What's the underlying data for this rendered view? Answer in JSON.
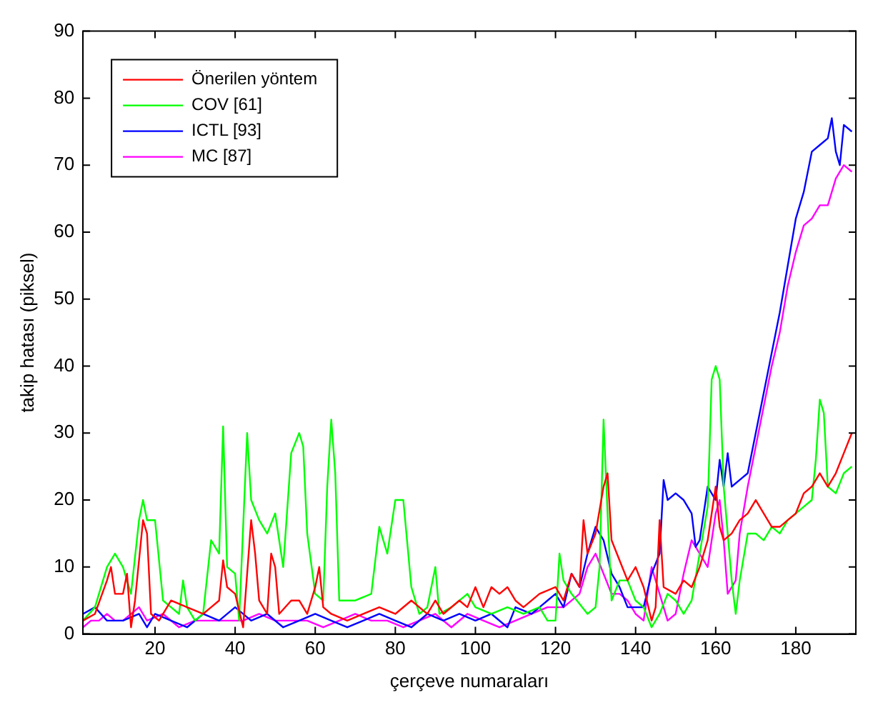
{
  "chart_data": {
    "type": "line",
    "xlabel": "çerçeve numaraları",
    "ylabel": "takip hatası (piksel)",
    "xlim": [
      2,
      195
    ],
    "xticks": [
      20,
      40,
      60,
      80,
      100,
      120,
      140,
      160,
      180
    ],
    "ylim": [
      0,
      90
    ],
    "yticks": [
      0,
      10,
      20,
      30,
      40,
      50,
      60,
      70,
      80,
      90
    ],
    "grid": false,
    "legend": "top left",
    "marker": "none",
    "line_style": "solid",
    "series": [
      {
        "name": "Önerilen yöntem",
        "color": "#ff0000",
        "x": [
          2,
          5,
          8,
          9,
          10,
          12,
          13,
          14,
          15,
          17,
          18,
          19,
          21,
          24,
          28,
          32,
          34,
          36,
          37,
          38,
          40,
          42,
          44,
          45,
          46,
          48,
          49,
          50,
          51,
          54,
          56,
          58,
          60,
          61,
          62,
          64,
          68,
          72,
          76,
          80,
          84,
          86,
          88,
          90,
          92,
          96,
          98,
          100,
          102,
          104,
          106,
          108,
          110,
          112,
          116,
          120,
          122,
          124,
          126,
          127,
          128,
          130,
          132,
          133,
          134,
          136,
          138,
          140,
          142,
          144,
          145,
          146,
          147,
          150,
          152,
          154,
          156,
          158,
          160,
          161,
          162,
          164,
          166,
          168,
          170,
          172,
          174,
          176,
          178,
          180,
          182,
          184,
          186,
          188,
          190,
          192,
          194
        ],
        "values": [
          2,
          3,
          8,
          10,
          6,
          6,
          9,
          1,
          5,
          17,
          15,
          3,
          2,
          5,
          4,
          3,
          4,
          5,
          11,
          7,
          6,
          1,
          17,
          12,
          5,
          3,
          12,
          10,
          3,
          5,
          5,
          3,
          7,
          10,
          4,
          3,
          2,
          3,
          4,
          3,
          5,
          4,
          3,
          5,
          3,
          5,
          4,
          7,
          4,
          7,
          6,
          7,
          5,
          4,
          6,
          7,
          5,
          9,
          7,
          17,
          12,
          15,
          22,
          24,
          14,
          11,
          8,
          10,
          7,
          2,
          4,
          17,
          7,
          6,
          8,
          7,
          10,
          14,
          22,
          16,
          14,
          15,
          17,
          18,
          20,
          18,
          16,
          16,
          17,
          18,
          21,
          22,
          24,
          22,
          24,
          27,
          30
        ]
      },
      {
        "name": "COV [61]",
        "color": "#00ff00",
        "x": [
          2,
          5,
          8,
          10,
          12,
          14,
          16,
          17,
          18,
          20,
          22,
          24,
          26,
          27,
          28,
          30,
          32,
          34,
          36,
          37,
          38,
          40,
          41,
          43,
          44,
          46,
          48,
          50,
          52,
          54,
          56,
          57,
          58,
          60,
          62,
          63,
          64,
          65,
          66,
          70,
          74,
          76,
          78,
          80,
          82,
          84,
          86,
          88,
          90,
          91,
          94,
          98,
          100,
          104,
          108,
          112,
          116,
          118,
          120,
          121,
          122,
          124,
          128,
          130,
          131,
          132,
          133,
          134,
          136,
          138,
          140,
          142,
          144,
          146,
          148,
          150,
          152,
          154,
          156,
          158,
          159,
          160,
          161,
          162,
          164,
          165,
          166,
          168,
          170,
          172,
          174,
          176,
          178,
          180,
          182,
          184,
          185,
          186,
          187,
          188,
          190,
          192,
          194
        ],
        "values": [
          2,
          4,
          10,
          12,
          10,
          6,
          17,
          20,
          17,
          17,
          5,
          4,
          3,
          8,
          4,
          2,
          3,
          14,
          12,
          31,
          10,
          9,
          2,
          30,
          20,
          17,
          15,
          18,
          10,
          27,
          30,
          28,
          15,
          6,
          5,
          22,
          32,
          24,
          5,
          5,
          6,
          16,
          12,
          20,
          20,
          7,
          3,
          4,
          10,
          3,
          4,
          6,
          4,
          3,
          4,
          3,
          4,
          2,
          2,
          12,
          8,
          6,
          3,
          4,
          10,
          32,
          18,
          5,
          8,
          8,
          5,
          4,
          1,
          3,
          6,
          5,
          3,
          5,
          12,
          19,
          38,
          40,
          38,
          22,
          8,
          3,
          8,
          15,
          15,
          14,
          16,
          15,
          17,
          18,
          19,
          20,
          26,
          35,
          33,
          22,
          21,
          24,
          25
        ]
      },
      {
        "name": "ICTL [93]",
        "color": "#0000ff",
        "x": [
          2,
          5,
          8,
          12,
          16,
          18,
          20,
          24,
          28,
          32,
          36,
          40,
          44,
          48,
          52,
          56,
          60,
          64,
          68,
          72,
          76,
          80,
          84,
          88,
          92,
          96,
          100,
          104,
          108,
          110,
          114,
          118,
          120,
          122,
          124,
          126,
          128,
          130,
          132,
          134,
          136,
          138,
          140,
          142,
          144,
          146,
          147,
          148,
          150,
          152,
          154,
          155,
          156,
          158,
          160,
          161,
          162,
          163,
          164,
          166,
          168,
          170,
          172,
          174,
          176,
          178,
          180,
          182,
          184,
          186,
          188,
          189,
          190,
          191,
          192,
          194
        ],
        "values": [
          3,
          4,
          2,
          2,
          3,
          1,
          3,
          2,
          1,
          3,
          2,
          4,
          2,
          3,
          1,
          2,
          3,
          2,
          1,
          2,
          3,
          2,
          1,
          3,
          2,
          3,
          2,
          3,
          1,
          4,
          3,
          5,
          6,
          4,
          9,
          7,
          12,
          16,
          14,
          9,
          7,
          4,
          4,
          4,
          9,
          12,
          23,
          20,
          21,
          20,
          18,
          13,
          14,
          22,
          20,
          26,
          22,
          27,
          22,
          23,
          24,
          30,
          36,
          42,
          48,
          55,
          62,
          66,
          72,
          73,
          74,
          77,
          72,
          70,
          76,
          75
        ]
      },
      {
        "name": "MC [87]",
        "color": "#ff00ff",
        "x": [
          2,
          4,
          6,
          8,
          10,
          12,
          14,
          16,
          18,
          22,
          26,
          30,
          34,
          38,
          42,
          46,
          50,
          54,
          58,
          62,
          66,
          70,
          74,
          78,
          82,
          86,
          90,
          94,
          98,
          102,
          106,
          110,
          114,
          118,
          122,
          126,
          128,
          130,
          132,
          134,
          136,
          138,
          140,
          142,
          144,
          146,
          148,
          150,
          152,
          154,
          156,
          158,
          160,
          161,
          162,
          163,
          165,
          166,
          168,
          170,
          172,
          174,
          176,
          178,
          180,
          182,
          184,
          186,
          188,
          190,
          192,
          194
        ],
        "values": [
          1,
          2,
          2,
          3,
          2,
          2,
          3,
          4,
          2,
          3,
          1,
          2,
          2,
          2,
          2,
          3,
          2,
          2,
          2,
          1,
          2,
          3,
          2,
          2,
          1,
          2,
          3,
          1,
          3,
          2,
          1,
          2,
          3,
          4,
          4,
          6,
          10,
          12,
          9,
          6,
          6,
          5,
          3,
          2,
          10,
          6,
          2,
          3,
          9,
          14,
          12,
          10,
          18,
          20,
          14,
          6,
          8,
          15,
          22,
          28,
          34,
          40,
          45,
          52,
          57,
          61,
          62,
          64,
          64,
          68,
          70,
          69
        ]
      }
    ]
  }
}
